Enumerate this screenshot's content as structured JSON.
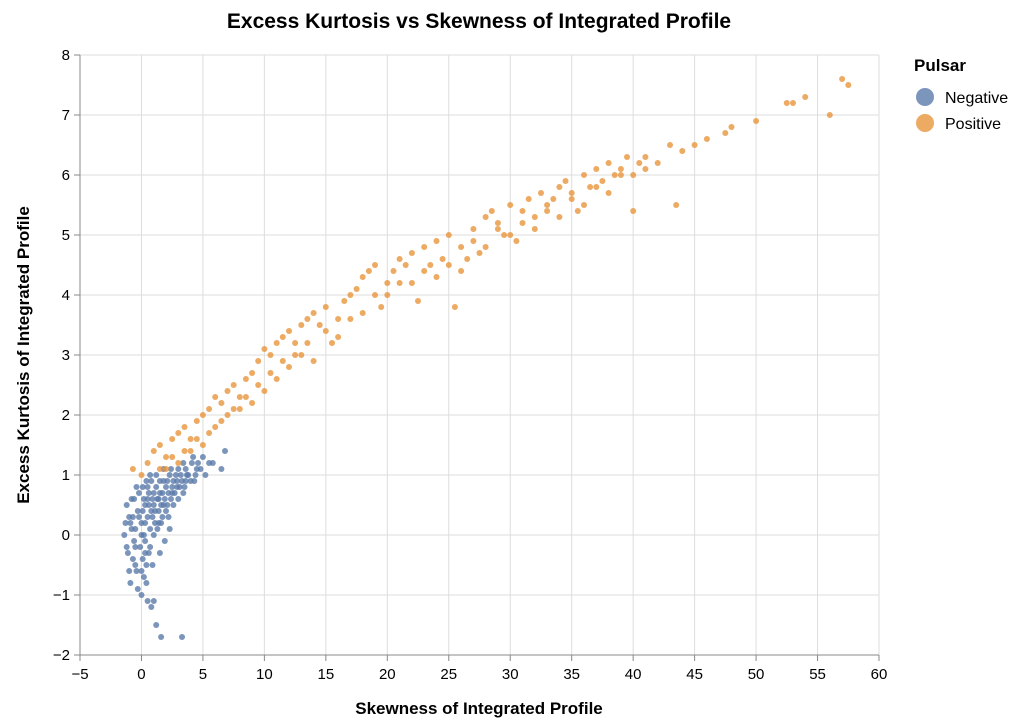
{
  "chart_data": {
    "type": "scatter",
    "title": "Excess Kurtosis vs Skewness of Integrated Profile",
    "xlabel": "Skewness of Integrated Profile",
    "ylabel": "Excess Kurtosis of Integrated Profile",
    "xlim": [
      -5,
      60
    ],
    "ylim": [
      -2,
      8
    ],
    "x_ticks": [
      -5,
      0,
      5,
      10,
      15,
      20,
      25,
      30,
      35,
      40,
      45,
      50,
      55,
      60
    ],
    "y_ticks": [
      -2,
      -1,
      0,
      1,
      2,
      3,
      4,
      5,
      6,
      7,
      8
    ],
    "x_tick_labels": [
      "−5",
      "0",
      "5",
      "10",
      "15",
      "20",
      "25",
      "30",
      "35",
      "40",
      "45",
      "50",
      "55",
      "60"
    ],
    "y_tick_labels": [
      "−2",
      "−1",
      "0",
      "1",
      "2",
      "3",
      "4",
      "5",
      "6",
      "7",
      "8"
    ],
    "grid": true,
    "legend": {
      "title": "Pulsar",
      "placement": "top-right",
      "entries": [
        {
          "label": "Negative",
          "color": "#5b7baa"
        },
        {
          "label": "Positive",
          "color": "#e9953c"
        }
      ]
    },
    "series": [
      {
        "name": "Negative",
        "color": "#5b7baa",
        "points": [
          [
            -1.2,
            0.5
          ],
          [
            -1.0,
            0.3
          ],
          [
            -0.8,
            0.1
          ],
          [
            -0.5,
            -0.2
          ],
          [
            -0.3,
            0.4
          ],
          [
            0.0,
            0.0
          ],
          [
            0.2,
            0.6
          ],
          [
            0.5,
            0.8
          ],
          [
            0.8,
            0.9
          ],
          [
            1.0,
            0.7
          ],
          [
            1.2,
            1.0
          ],
          [
            1.5,
            0.9
          ],
          [
            1.8,
            1.1
          ],
          [
            2.0,
            0.8
          ],
          [
            2.3,
            1.0
          ],
          [
            2.6,
            0.9
          ],
          [
            3.0,
            1.1
          ],
          [
            3.4,
            1.2
          ],
          [
            3.8,
            1.0
          ],
          [
            4.2,
            1.3
          ],
          [
            4.6,
            1.2
          ],
          [
            5.0,
            1.3
          ],
          [
            5.5,
            1.2
          ],
          [
            6.5,
            1.1
          ],
          [
            6.8,
            1.4
          ],
          [
            -1.4,
            0.0
          ],
          [
            -1.1,
            -0.3
          ],
          [
            -0.9,
            0.2
          ],
          [
            -0.6,
            0.6
          ],
          [
            -0.4,
            -0.6
          ],
          [
            -0.2,
            0.3
          ],
          [
            0.1,
            -0.4
          ],
          [
            0.3,
            0.2
          ],
          [
            0.4,
            -0.8
          ],
          [
            0.6,
            0.5
          ],
          [
            0.7,
            -0.2
          ],
          [
            0.9,
            0.3
          ],
          [
            1.1,
            0.4
          ],
          [
            1.3,
            0.6
          ],
          [
            1.4,
            0.2
          ],
          [
            1.6,
            0.5
          ],
          [
            1.7,
            0.7
          ],
          [
            1.9,
            0.6
          ],
          [
            2.1,
            0.5
          ],
          [
            2.2,
            0.7
          ],
          [
            2.4,
            0.6
          ],
          [
            2.5,
            0.8
          ],
          [
            2.7,
            0.7
          ],
          [
            2.9,
            0.9
          ],
          [
            3.1,
            0.8
          ],
          [
            3.3,
            0.9
          ],
          [
            3.5,
            0.8
          ],
          [
            3.7,
            1.0
          ],
          [
            4.0,
            0.9
          ],
          [
            4.4,
            1.0
          ],
          [
            4.8,
            1.1
          ],
          [
            0.0,
            -1.0
          ],
          [
            0.5,
            -1.1
          ],
          [
            0.8,
            -1.2
          ],
          [
            1.0,
            -1.1
          ],
          [
            1.2,
            -1.5
          ],
          [
            1.6,
            -1.7
          ],
          [
            3.3,
            -1.7
          ],
          [
            -0.3,
            -0.9
          ],
          [
            0.2,
            -0.7
          ],
          [
            0.4,
            -0.5
          ],
          [
            0.6,
            -0.3
          ],
          [
            -0.7,
            -0.4
          ],
          [
            -1.3,
            0.2
          ],
          [
            -0.5,
            0.1
          ],
          [
            0.0,
            0.2
          ],
          [
            0.3,
            0.5
          ],
          [
            0.6,
            0.7
          ],
          [
            0.9,
            0.6
          ],
          [
            1.2,
            0.8
          ],
          [
            1.5,
            0.7
          ],
          [
            1.8,
            0.9
          ],
          [
            2.1,
            0.9
          ],
          [
            2.4,
            1.1
          ],
          [
            2.8,
            1.0
          ],
          [
            3.2,
            1.0
          ],
          [
            3.6,
            1.1
          ],
          [
            4.1,
            1.2
          ],
          [
            4.5,
            1.1
          ],
          [
            5.2,
            1.0
          ],
          [
            -0.8,
            0.6
          ],
          [
            -0.2,
            0.7
          ],
          [
            0.1,
            0.8
          ],
          [
            0.4,
            0.9
          ],
          [
            0.7,
            1.0
          ],
          [
            -1.0,
            -0.6
          ],
          [
            -0.6,
            -0.1
          ],
          [
            -0.1,
            -0.2
          ],
          [
            0.2,
            0.0
          ],
          [
            0.5,
            0.3
          ],
          [
            0.8,
            0.4
          ],
          [
            1.1,
            0.2
          ],
          [
            1.4,
            0.4
          ],
          [
            1.7,
            0.3
          ],
          [
            2.0,
            0.4
          ],
          [
            -0.4,
            0.8
          ],
          [
            0.3,
            -0.1
          ],
          [
            0.7,
            0.1
          ],
          [
            1.0,
            0.0
          ],
          [
            1.3,
            0.1
          ],
          [
            1.6,
            0.2
          ],
          [
            2.2,
            0.3
          ],
          [
            2.6,
            0.5
          ],
          [
            3.0,
            0.6
          ],
          [
            3.4,
            0.7
          ],
          [
            -0.9,
            -0.8
          ],
          [
            -0.5,
            -0.5
          ],
          [
            0.0,
            -0.6
          ],
          [
            0.3,
            -0.3
          ],
          [
            0.9,
            -0.5
          ],
          [
            1.5,
            -0.3
          ],
          [
            1.9,
            -0.1
          ],
          [
            2.3,
            0.1
          ],
          [
            -1.2,
            -0.2
          ],
          [
            -0.7,
            0.3
          ],
          [
            0.1,
            0.4
          ],
          [
            0.5,
            0.6
          ],
          [
            1.0,
            0.5
          ],
          [
            1.4,
            0.6
          ],
          [
            1.8,
            0.5
          ],
          [
            2.5,
            0.7
          ],
          [
            2.9,
            0.8
          ],
          [
            3.6,
            0.9
          ],
          [
            4.3,
            0.9
          ],
          [
            5.8,
            1.2
          ]
        ]
      },
      {
        "name": "Positive",
        "color": "#e9953c",
        "points": [
          [
            -0.7,
            1.1
          ],
          [
            0.0,
            1.0
          ],
          [
            0.5,
            1.2
          ],
          [
            1.0,
            1.4
          ],
          [
            1.5,
            1.5
          ],
          [
            2.0,
            1.3
          ],
          [
            2.5,
            1.6
          ],
          [
            3.0,
            1.7
          ],
          [
            3.5,
            1.8
          ],
          [
            4.0,
            1.6
          ],
          [
            4.5,
            1.9
          ],
          [
            5.0,
            2.0
          ],
          [
            5.5,
            2.1
          ],
          [
            6.0,
            2.3
          ],
          [
            6.5,
            2.2
          ],
          [
            7.0,
            2.4
          ],
          [
            7.5,
            2.5
          ],
          [
            8.0,
            2.3
          ],
          [
            8.5,
            2.6
          ],
          [
            9.0,
            2.7
          ],
          [
            9.5,
            2.9
          ],
          [
            10.0,
            3.1
          ],
          [
            10.5,
            3.0
          ],
          [
            11.0,
            3.2
          ],
          [
            11.5,
            3.3
          ],
          [
            12.0,
            3.4
          ],
          [
            12.5,
            3.2
          ],
          [
            13.0,
            3.5
          ],
          [
            13.5,
            3.6
          ],
          [
            14.0,
            3.7
          ],
          [
            14.5,
            3.5
          ],
          [
            15.0,
            3.8
          ],
          [
            15.5,
            3.2
          ],
          [
            16.0,
            3.6
          ],
          [
            16.5,
            3.9
          ],
          [
            17.0,
            4.0
          ],
          [
            17.5,
            4.1
          ],
          [
            18.0,
            4.3
          ],
          [
            18.5,
            4.4
          ],
          [
            19.0,
            4.5
          ],
          [
            19.5,
            3.8
          ],
          [
            20.0,
            4.2
          ],
          [
            20.5,
            4.4
          ],
          [
            21.0,
            4.6
          ],
          [
            21.5,
            4.5
          ],
          [
            22.0,
            4.7
          ],
          [
            22.5,
            3.9
          ],
          [
            23.0,
            4.8
          ],
          [
            23.5,
            4.5
          ],
          [
            24.0,
            4.9
          ],
          [
            24.5,
            4.6
          ],
          [
            25.0,
            5.0
          ],
          [
            25.5,
            3.8
          ],
          [
            26.0,
            4.8
          ],
          [
            26.5,
            4.6
          ],
          [
            27.0,
            5.1
          ],
          [
            27.5,
            4.7
          ],
          [
            28.0,
            5.3
          ],
          [
            28.5,
            5.4
          ],
          [
            29.0,
            5.2
          ],
          [
            29.5,
            5.0
          ],
          [
            30.0,
            5.5
          ],
          [
            30.5,
            4.9
          ],
          [
            31.0,
            5.4
          ],
          [
            31.5,
            5.6
          ],
          [
            32.0,
            5.3
          ],
          [
            32.5,
            5.7
          ],
          [
            33.0,
            5.5
          ],
          [
            33.5,
            5.6
          ],
          [
            34.0,
            5.8
          ],
          [
            34.5,
            5.9
          ],
          [
            35.0,
            5.7
          ],
          [
            35.5,
            5.4
          ],
          [
            36.0,
            6.0
          ],
          [
            36.5,
            5.8
          ],
          [
            37.0,
            6.1
          ],
          [
            37.5,
            5.9
          ],
          [
            38.0,
            6.2
          ],
          [
            38.5,
            6.0
          ],
          [
            39.0,
            6.1
          ],
          [
            39.5,
            6.3
          ],
          [
            40.0,
            5.4
          ],
          [
            40.5,
            6.2
          ],
          [
            41.0,
            6.3
          ],
          [
            42.0,
            6.2
          ],
          [
            43.0,
            6.5
          ],
          [
            43.5,
            5.5
          ],
          [
            44.0,
            6.4
          ],
          [
            45.0,
            6.5
          ],
          [
            46.0,
            6.6
          ],
          [
            47.5,
            6.7
          ],
          [
            48.0,
            6.8
          ],
          [
            50.0,
            6.9
          ],
          [
            52.5,
            7.2
          ],
          [
            53.0,
            7.2
          ],
          [
            54.0,
            7.3
          ],
          [
            56.0,
            7.0
          ],
          [
            57.0,
            7.6
          ],
          [
            57.5,
            7.5
          ],
          [
            2.0,
            1.1
          ],
          [
            3.0,
            1.2
          ],
          [
            4.0,
            1.4
          ],
          [
            5.0,
            1.5
          ],
          [
            6.0,
            1.8
          ],
          [
            7.0,
            2.0
          ],
          [
            8.0,
            2.1
          ],
          [
            9.0,
            2.2
          ],
          [
            10.0,
            2.4
          ],
          [
            11.0,
            2.6
          ],
          [
            12.0,
            2.8
          ],
          [
            13.0,
            3.0
          ],
          [
            14.0,
            2.9
          ],
          [
            16.0,
            3.3
          ],
          [
            18.0,
            3.7
          ],
          [
            20.0,
            4.0
          ],
          [
            22.0,
            4.2
          ],
          [
            24.0,
            4.3
          ],
          [
            26.0,
            4.4
          ],
          [
            28.0,
            4.8
          ],
          [
            30.0,
            5.0
          ],
          [
            32.0,
            5.1
          ],
          [
            34.0,
            5.3
          ],
          [
            36.0,
            5.5
          ],
          [
            38.0,
            5.7
          ],
          [
            40.0,
            6.0
          ],
          [
            1.5,
            1.1
          ],
          [
            2.5,
            1.3
          ],
          [
            3.5,
            1.4
          ],
          [
            4.5,
            1.6
          ],
          [
            5.5,
            1.7
          ],
          [
            6.5,
            1.9
          ],
          [
            7.5,
            2.1
          ],
          [
            8.5,
            2.3
          ],
          [
            9.5,
            2.5
          ],
          [
            10.5,
            2.7
          ],
          [
            11.5,
            2.9
          ],
          [
            12.5,
            3.0
          ],
          [
            13.5,
            3.2
          ],
          [
            15.0,
            3.4
          ],
          [
            17.0,
            3.6
          ],
          [
            19.0,
            4.0
          ],
          [
            21.0,
            4.2
          ],
          [
            23.0,
            4.4
          ],
          [
            25.0,
            4.5
          ],
          [
            27.0,
            4.9
          ],
          [
            29.0,
            5.1
          ],
          [
            31.0,
            5.2
          ],
          [
            33.0,
            5.4
          ],
          [
            35.0,
            5.6
          ],
          [
            37.0,
            5.8
          ],
          [
            39.0,
            6.0
          ],
          [
            41.0,
            6.1
          ]
        ]
      }
    ]
  }
}
